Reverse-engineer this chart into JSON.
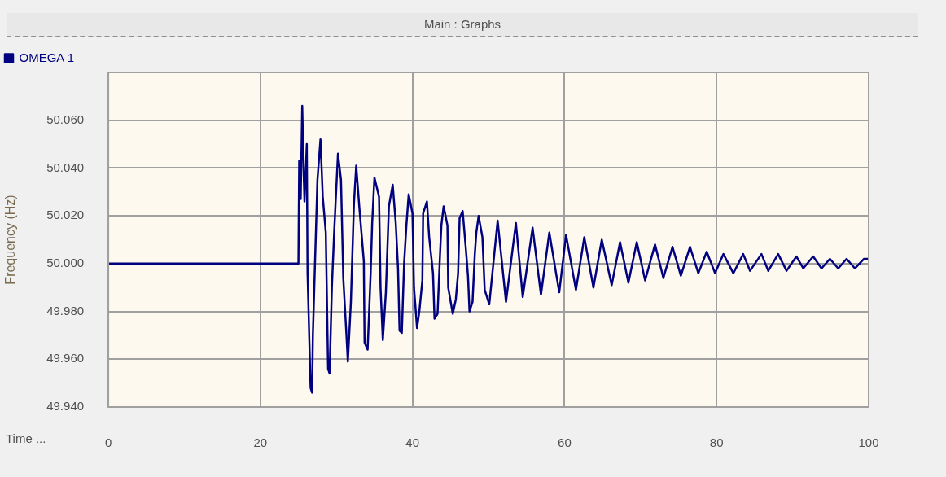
{
  "chart_data": {
    "type": "line",
    "title": "Main : Graphs",
    "xlabel": "Time ...",
    "ylabel": "Frequency (Hz)",
    "xlim": [
      0,
      100
    ],
    "xticks": [
      0,
      20,
      40,
      60,
      80,
      100
    ],
    "ylim": [
      49.94,
      50.08
    ],
    "yticks": [
      {
        "value": 49.94,
        "label": "49.940"
      },
      {
        "value": 49.96,
        "label": "49.960"
      },
      {
        "value": 49.98,
        "label": "49.980"
      },
      {
        "value": 50.0,
        "label": "50.000"
      },
      {
        "value": 50.02,
        "label": "50.020"
      },
      {
        "value": 50.04,
        "label": "50.040"
      },
      {
        "value": 50.06,
        "label": "50.060"
      }
    ],
    "grid": true,
    "legend": "top left",
    "marker": "none",
    "line_style": "solid",
    "series": [
      {
        "name": "OMEGA 1",
        "color": "#000080",
        "x": [
          0,
          25.0,
          25.1,
          25.3,
          25.5,
          25.7,
          25.8,
          26.1,
          26.2,
          26.6,
          26.8,
          26.9,
          27.5,
          27.9,
          28.2,
          28.6,
          28.9,
          29.1,
          29.4,
          29.7,
          30.2,
          30.6,
          30.9,
          31.3,
          31.5,
          31.9,
          32.3,
          32.6,
          33.0,
          33.6,
          33.7,
          34.1,
          34.5,
          34.7,
          35.0,
          35.6,
          35.8,
          36.1,
          36.5,
          36.9,
          37.4,
          37.8,
          38.1,
          38.3,
          38.6,
          38.9,
          39.2,
          39.5,
          40.0,
          40.2,
          40.6,
          40.9,
          41.3,
          41.4,
          41.9,
          42.2,
          42.7,
          42.9,
          43.3,
          43.6,
          43.8,
          44.1,
          44.6,
          44.7,
          45.3,
          45.7,
          46.0,
          46.2,
          46.6,
          47.0,
          47.3,
          47.5,
          47.9,
          48.2,
          48.4,
          48.7,
          49.2,
          49.5,
          50.1,
          51.2,
          52.3,
          53.6,
          54.5,
          55.8,
          56.9,
          58.0,
          59.3,
          60.2,
          61.5,
          62.6,
          63.8,
          64.9,
          66.2,
          67.3,
          68.4,
          69.5,
          70.6,
          71.9,
          73.0,
          74.2,
          75.3,
          76.5,
          77.6,
          78.7,
          79.8,
          80.9,
          82.2,
          83.5,
          84.4,
          85.9,
          86.8,
          88.1,
          89.2,
          90.5,
          91.4,
          92.7,
          93.8,
          94.9,
          96.0,
          97.1,
          98.2,
          99.4,
          100
        ],
        "values": [
          50.0,
          50.0,
          50.043,
          50.027,
          50.066,
          50.037,
          50.026,
          50.05,
          49.996,
          49.948,
          49.946,
          49.97,
          50.035,
          50.052,
          50.028,
          50.013,
          49.956,
          49.954,
          49.99,
          50.013,
          50.046,
          50.035,
          49.994,
          49.971,
          49.959,
          49.984,
          50.025,
          50.041,
          50.024,
          50.001,
          49.967,
          49.964,
          49.996,
          50.017,
          50.036,
          50.028,
          49.99,
          49.968,
          49.988,
          50.024,
          50.033,
          50.017,
          49.998,
          49.972,
          49.971,
          50.0,
          50.016,
          50.029,
          50.021,
          49.99,
          49.973,
          49.98,
          49.993,
          50.021,
          50.026,
          50.011,
          49.996,
          49.977,
          49.979,
          50.002,
          50.016,
          50.024,
          50.016,
          49.99,
          49.979,
          49.985,
          49.996,
          50.019,
          50.022,
          50.007,
          49.995,
          49.98,
          49.984,
          50.004,
          50.013,
          50.02,
          50.011,
          49.989,
          49.983,
          50.018,
          49.984,
          50.017,
          49.986,
          50.015,
          49.987,
          50.013,
          49.988,
          50.012,
          49.989,
          50.011,
          49.99,
          50.01,
          49.991,
          50.009,
          49.992,
          50.009,
          49.993,
          50.008,
          49.994,
          50.007,
          49.995,
          50.007,
          49.996,
          50.005,
          49.996,
          50.004,
          49.996,
          50.004,
          49.997,
          50.004,
          49.997,
          50.004,
          49.997,
          50.003,
          49.998,
          50.003,
          49.998,
          50.002,
          49.998,
          50.002,
          49.998,
          50.002,
          50.002
        ]
      }
    ]
  }
}
